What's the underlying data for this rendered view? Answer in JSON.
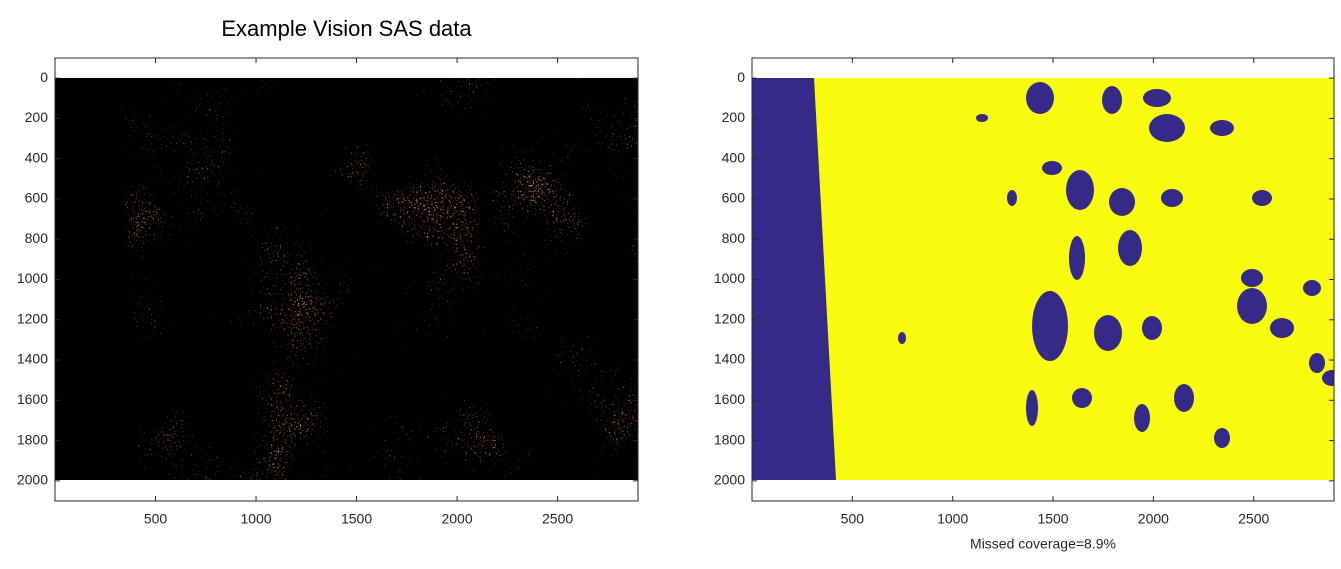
{
  "chart_data": [
    {
      "type": "image",
      "title": "Example Vision SAS data",
      "xlim": [
        0,
        2900
      ],
      "ylim": [
        -100,
        2100
      ],
      "y_reversed": true,
      "xticks": [
        500,
        1000,
        1500,
        2000,
        2500
      ],
      "yticks": [
        0,
        200,
        400,
        600,
        800,
        1000,
        1200,
        1400,
        1600,
        1800,
        2000
      ]
    },
    {
      "type": "image",
      "xlabel": "Missed coverage=8.9%",
      "xlim": [
        0,
        2900
      ],
      "ylim": [
        -100,
        2100
      ],
      "y_reversed": true,
      "xticks": [
        500,
        1000,
        1500,
        2000,
        2500
      ],
      "yticks": [
        0,
        200,
        400,
        600,
        800,
        1000,
        1200,
        1400,
        1600,
        1800,
        2000
      ]
    }
  ]
}
